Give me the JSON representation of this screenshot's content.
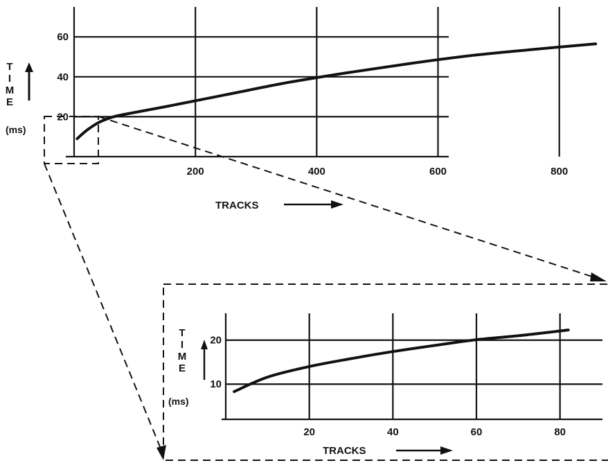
{
  "chart_data": [
    {
      "type": "line",
      "xlabel": "TRACKS",
      "ylabel": "TIME",
      "yunit": "(ms)",
      "xlim": [
        0,
        870
      ],
      "ylim": [
        0,
        75
      ],
      "xticks": [
        200,
        400,
        600,
        800
      ],
      "yticks": [
        20,
        40,
        60
      ],
      "xtick_labels": [
        "200",
        "400",
        "600",
        "800"
      ],
      "ytick_labels": [
        "20",
        "40",
        "60"
      ],
      "grid": true,
      "series": [
        {
          "x": [
            5,
            20,
            40,
            60,
            80,
            150,
            250,
            350,
            450,
            550,
            650,
            750,
            860
          ],
          "values": [
            9,
            13,
            17,
            19.5,
            21,
            25,
            31,
            37,
            42,
            46.5,
            50.5,
            53.5,
            56.5
          ]
        }
      ]
    },
    {
      "type": "line",
      "xlabel": "TRACKS",
      "ylabel": "TIME",
      "yunit": "(ms)",
      "xlim": [
        0,
        90
      ],
      "ylim": [
        2,
        25
      ],
      "xticks": [
        20,
        40,
        60,
        80
      ],
      "yticks": [
        10,
        20
      ],
      "xtick_labels": [
        "20",
        "40",
        "60",
        "80"
      ],
      "ytick_labels": [
        "10",
        "20"
      ],
      "grid": true,
      "series": [
        {
          "x": [
            2,
            10,
            20,
            30,
            40,
            50,
            60,
            70,
            82
          ],
          "values": [
            8.3,
            11.6,
            14,
            15.8,
            17.4,
            18.8,
            20.1,
            21,
            22.3
          ]
        }
      ]
    }
  ]
}
